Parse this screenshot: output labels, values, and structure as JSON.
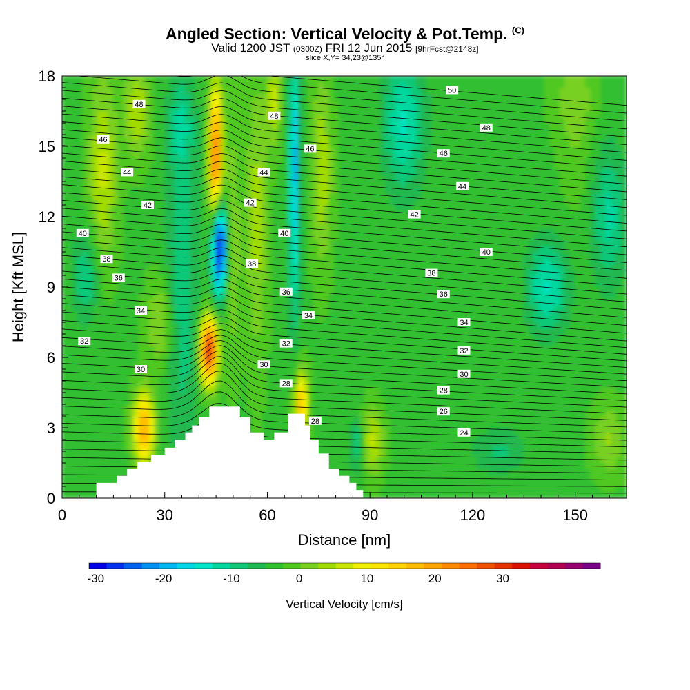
{
  "header": {
    "title_main": "Angled Section: Vertical Velocity & Pot.Temp.",
    "title_copyright": "(C)",
    "valid_prefix": "Valid 1200 JST",
    "valid_utc": "(0300Z)",
    "valid_date": "FRI 12 Jun 2015",
    "forecast_tag": "[9hrFcst@2148z]",
    "slice": "slice X,Y= 34,23@135°"
  },
  "colors": {
    "terrain": "#ffffff",
    "contour": "#000000",
    "background": "#ffffff"
  },
  "chart_data": {
    "type": "heatmap",
    "title": "Angled Section: Vertical Velocity & Pot.Temp.",
    "xlabel": "Distance [nm]",
    "ylabel": "Height [Kft MSL]",
    "xlim": [
      0,
      165
    ],
    "ylim": [
      0,
      18
    ],
    "xticks": [
      0,
      30,
      60,
      90,
      120,
      150
    ],
    "yticks": [
      0,
      3,
      6,
      9,
      12,
      15,
      18
    ],
    "colorbar": {
      "label": "Vertical Velocity [cm/s]",
      "ticks": [
        -30,
        -20,
        -10,
        0,
        10,
        20,
        30
      ],
      "min": -31,
      "step": 2.6,
      "colors": [
        "#0000e6",
        "#0030f0",
        "#0060f0",
        "#0090f0",
        "#00b8f0",
        "#00d8e6",
        "#00e6c8",
        "#00d8a0",
        "#10c878",
        "#20b850",
        "#30c030",
        "#50c820",
        "#78d020",
        "#a0dc00",
        "#c8e600",
        "#f0f000",
        "#fae600",
        "#ffd200",
        "#ffbe00",
        "#ffa500",
        "#ff8c00",
        "#ff6e00",
        "#f05000",
        "#e63200",
        "#dc1000",
        "#c8003c",
        "#b00050",
        "#96006e",
        "#780087"
      ]
    },
    "contour_level_labels": [
      {
        "label": "48",
        "x": 22.5,
        "y": 16.8
      },
      {
        "label": "46",
        "x": 12,
        "y": 15.3
      },
      {
        "label": "44",
        "x": 19,
        "y": 13.9
      },
      {
        "label": "42",
        "x": 25,
        "y": 12.5
      },
      {
        "label": "40",
        "x": 6,
        "y": 11.3
      },
      {
        "label": "38",
        "x": 13,
        "y": 10.2
      },
      {
        "label": "36",
        "x": 16.5,
        "y": 9.4
      },
      {
        "label": "34",
        "x": 23,
        "y": 8.0
      },
      {
        "label": "32",
        "x": 6.5,
        "y": 6.7
      },
      {
        "label": "30",
        "x": 23,
        "y": 5.5
      },
      {
        "label": "48",
        "x": 62,
        "y": 16.3
      },
      {
        "label": "46",
        "x": 72.5,
        "y": 14.9
      },
      {
        "label": "44",
        "x": 59,
        "y": 13.9
      },
      {
        "label": "42",
        "x": 55,
        "y": 12.6
      },
      {
        "label": "40",
        "x": 65,
        "y": 11.3
      },
      {
        "label": "38",
        "x": 55.5,
        "y": 10.0
      },
      {
        "label": "36",
        "x": 65.5,
        "y": 8.8
      },
      {
        "label": "34",
        "x": 72,
        "y": 7.8
      },
      {
        "label": "32",
        "x": 65.5,
        "y": 6.6
      },
      {
        "label": "30",
        "x": 59,
        "y": 5.7
      },
      {
        "label": "28",
        "x": 65.5,
        "y": 4.9
      },
      {
        "label": "28",
        "x": 74,
        "y": 3.3
      },
      {
        "label": "50",
        "x": 114,
        "y": 17.4
      },
      {
        "label": "48",
        "x": 124,
        "y": 15.8
      },
      {
        "label": "46",
        "x": 111.5,
        "y": 14.7
      },
      {
        "label": "44",
        "x": 117,
        "y": 13.3
      },
      {
        "label": "42",
        "x": 103,
        "y": 12.1
      },
      {
        "label": "40",
        "x": 124,
        "y": 10.5
      },
      {
        "label": "38",
        "x": 108,
        "y": 9.6
      },
      {
        "label": "36",
        "x": 111.5,
        "y": 8.7
      },
      {
        "label": "34",
        "x": 117.5,
        "y": 7.5
      },
      {
        "label": "32",
        "x": 117.5,
        "y": 6.3
      },
      {
        "label": "30",
        "x": 117.5,
        "y": 5.3
      },
      {
        "label": "28",
        "x": 111.5,
        "y": 4.6
      },
      {
        "label": "26",
        "x": 111.5,
        "y": 3.7
      },
      {
        "label": "24",
        "x": 117.5,
        "y": 2.8
      }
    ],
    "terrain_profile": [
      {
        "x": 0,
        "y": 0
      },
      {
        "x": 10,
        "y": 0
      },
      {
        "x": 10,
        "y": 0.65
      },
      {
        "x": 16,
        "y": 0.65
      },
      {
        "x": 16,
        "y": 0.95
      },
      {
        "x": 19,
        "y": 0.95
      },
      {
        "x": 19,
        "y": 1.25
      },
      {
        "x": 22,
        "y": 1.25
      },
      {
        "x": 22,
        "y": 1.55
      },
      {
        "x": 26,
        "y": 1.55
      },
      {
        "x": 26,
        "y": 1.85
      },
      {
        "x": 30,
        "y": 1.85
      },
      {
        "x": 30,
        "y": 2.15
      },
      {
        "x": 33,
        "y": 2.15
      },
      {
        "x": 33,
        "y": 2.5
      },
      {
        "x": 36,
        "y": 2.5
      },
      {
        "x": 36,
        "y": 2.8
      },
      {
        "x": 38,
        "y": 2.8
      },
      {
        "x": 38,
        "y": 3.1
      },
      {
        "x": 40,
        "y": 3.1
      },
      {
        "x": 40,
        "y": 3.45
      },
      {
        "x": 43,
        "y": 3.45
      },
      {
        "x": 43,
        "y": 3.9
      },
      {
        "x": 52,
        "y": 3.9
      },
      {
        "x": 52,
        "y": 3.45
      },
      {
        "x": 55,
        "y": 3.45
      },
      {
        "x": 55,
        "y": 2.8
      },
      {
        "x": 59,
        "y": 2.8
      },
      {
        "x": 59,
        "y": 2.5
      },
      {
        "x": 62,
        "y": 2.5
      },
      {
        "x": 62,
        "y": 2.8
      },
      {
        "x": 66,
        "y": 2.8
      },
      {
        "x": 66,
        "y": 3.6
      },
      {
        "x": 71,
        "y": 3.6
      },
      {
        "x": 71,
        "y": 3.1
      },
      {
        "x": 72.5,
        "y": 3.1
      },
      {
        "x": 72.5,
        "y": 2.5
      },
      {
        "x": 75,
        "y": 2.5
      },
      {
        "x": 75,
        "y": 1.9
      },
      {
        "x": 78,
        "y": 1.9
      },
      {
        "x": 78,
        "y": 1.25
      },
      {
        "x": 81,
        "y": 1.25
      },
      {
        "x": 81,
        "y": 0.95
      },
      {
        "x": 84,
        "y": 0.95
      },
      {
        "x": 84,
        "y": 0.65
      },
      {
        "x": 86,
        "y": 0.65
      },
      {
        "x": 86,
        "y": 0.35
      },
      {
        "x": 88,
        "y": 0.35
      },
      {
        "x": 88,
        "y": 0
      }
    ]
  }
}
